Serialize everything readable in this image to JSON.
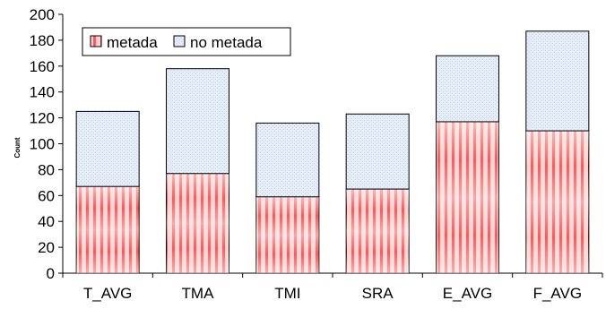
{
  "chart_data": {
    "type": "bar",
    "stacked": true,
    "categories": [
      "T_AVG",
      "TMA",
      "TMI",
      "SRA",
      "E_AVG",
      "F_AVG"
    ],
    "series": [
      {
        "name": "metada",
        "values": [
          67,
          77,
          59,
          65,
          117,
          110
        ],
        "color": "#ff5a5a"
      },
      {
        "name": "no metada",
        "values": [
          58,
          81,
          57,
          58,
          51,
          77
        ],
        "color": "#dde8f5"
      }
    ],
    "ylabel": "Count",
    "ylim": [
      0,
      200
    ],
    "yticks": [
      0,
      20,
      40,
      60,
      80,
      100,
      120,
      140,
      160,
      180,
      200
    ],
    "grid": false,
    "legend_position": "top-left"
  }
}
